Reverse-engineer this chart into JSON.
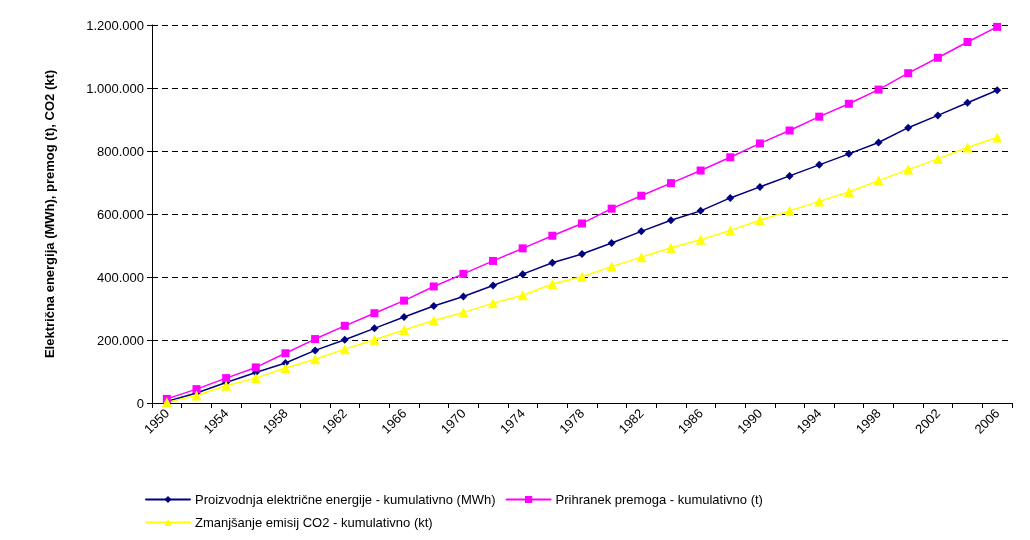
{
  "chart_data": {
    "type": "line",
    "ylabel": "Električna energija (MWh), premog (t), CO2 (kt)",
    "categories": [
      "1950",
      null,
      "1954",
      null,
      "1958",
      null,
      "1962",
      null,
      "1966",
      null,
      "1970",
      null,
      "1974",
      null,
      "1978",
      null,
      "1982",
      null,
      "1986",
      null,
      "1990",
      null,
      "1994",
      null,
      "1998",
      null,
      "2002",
      null,
      "2006"
    ],
    "series": [
      {
        "name": "Proizvodnja električne energije - kumulativno (MWh)",
        "color": "#000080",
        "marker": "diamond",
        "values": [
          5000,
          32000,
          65000,
          97000,
          127000,
          167000,
          201000,
          237000,
          273000,
          308000,
          338000,
          373000,
          409000,
          445000,
          473000,
          508000,
          545000,
          580000,
          610000,
          651000,
          686000,
          721000,
          756000,
          791000,
          827000,
          874000,
          913000,
          953000,
          993000
        ]
      },
      {
        "name": "Prihranek premoga - kumulativno (t)",
        "color": "#ff00ff",
        "marker": "square",
        "values": [
          13000,
          44000,
          79000,
          113000,
          158000,
          203000,
          245000,
          285000,
          325000,
          370000,
          410000,
          451000,
          491000,
          531000,
          570000,
          617000,
          658000,
          698000,
          738000,
          780000,
          824000,
          865000,
          909000,
          950000,
          995000,
          1047000,
          1096000,
          1146000,
          1194000
        ]
      },
      {
        "name": "Zmanjšanje emisij CO2 - kumulativno (kt)",
        "color": "#ffff00",
        "marker": "triangle",
        "values": [
          2000,
          24000,
          55000,
          79000,
          111000,
          139000,
          171000,
          201000,
          232000,
          262000,
          287000,
          317000,
          342000,
          378000,
          401000,
          433000,
          463000,
          493000,
          518000,
          548000,
          580000,
          610000,
          640000,
          670000,
          706000,
          741000,
          775000,
          811000,
          843000
        ]
      }
    ],
    "ylim": [
      0,
      1200000
    ],
    "yticks": [
      0,
      {
        "value": 200000,
        "label": "200.000"
      },
      {
        "value": 400000,
        "label": "400.000"
      },
      {
        "value": 600000,
        "label": "600.000"
      },
      {
        "value": 800000,
        "label": "800.000"
      },
      {
        "value": 1000000,
        "label": "1.000.000"
      },
      {
        "value": 1200000,
        "label": "1.200.000"
      }
    ],
    "grid": "y",
    "legend": "bottom",
    "line_style": "solid"
  }
}
